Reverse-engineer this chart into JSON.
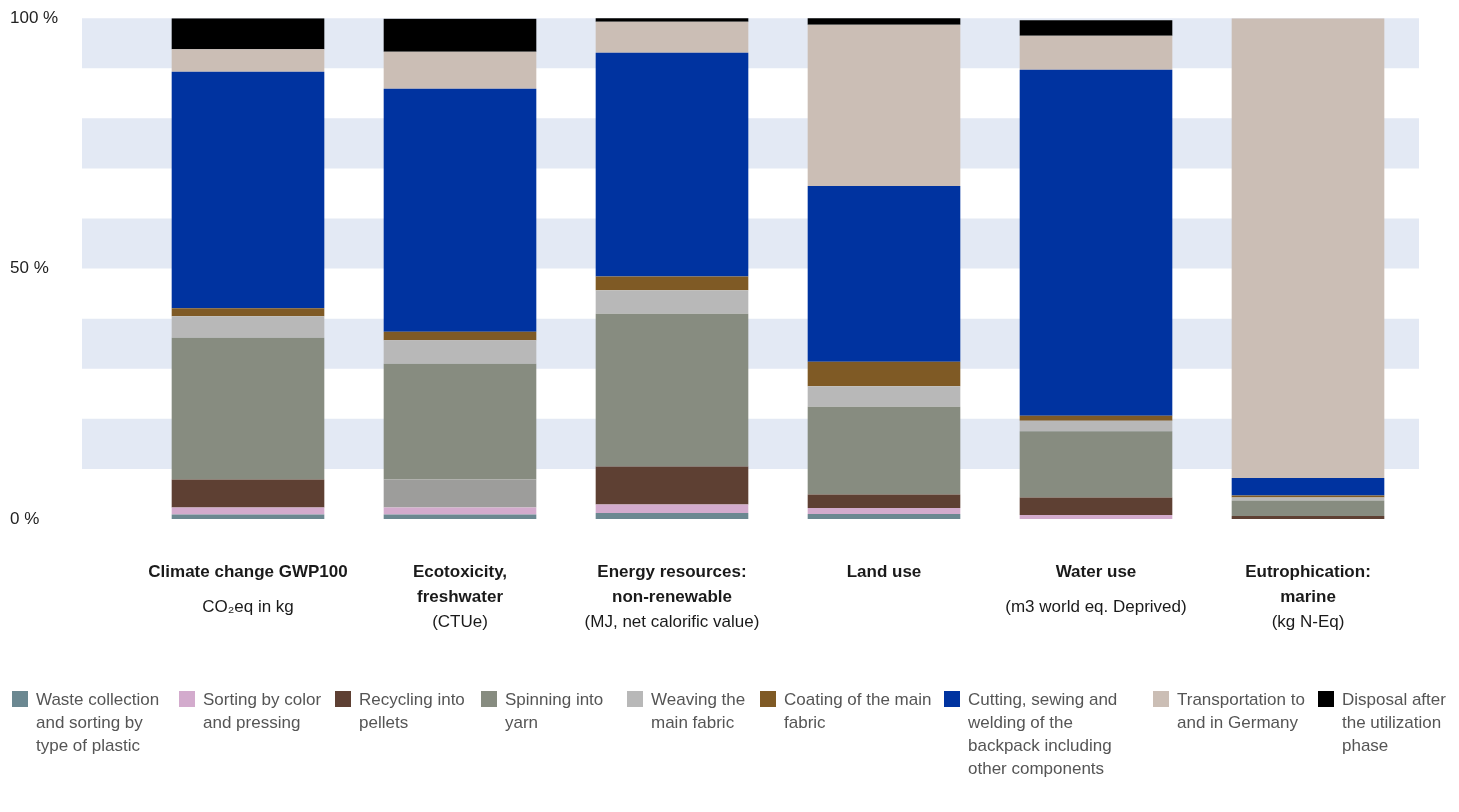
{
  "chart_data": {
    "type": "bar",
    "stacked": true,
    "categories": [
      "Climate change GWP100\nCO₂eq in kg",
      "Ecotoxicity,\nfreshwater\n(CTUe)",
      "Energy resources:\nnon-renewable\n(MJ, net calorific value)",
      "Land use",
      "Water use\n(m3 world eq. Deprived)",
      "Eutrophication:\nmarine\n(kg N-Eq)"
    ],
    "series": [
      {
        "name": "Waste collection and sorting by type of plastic",
        "color": "#6b8891",
        "values": [
          0.9,
          0.9,
          1.2,
          1.0,
          0,
          0
        ]
      },
      {
        "name": "Sorting by color and pressing",
        "color": "#d3abcd",
        "values": [
          1.4,
          1.4,
          1.7,
          1.2,
          0.8,
          0
        ]
      },
      {
        "name": "Recycling into pellets",
        "color": "#5e4033",
        "colors": [
          "#5e4033",
          "#9d9d9b",
          "#5e4033",
          "#5e4033",
          "#5e4033",
          "#5e4033"
        ],
        "values": [
          5.6,
          5.6,
          7.6,
          2.7,
          3.5,
          0.6
        ]
      },
      {
        "name": "Spinning into yarn",
        "color": "#878c80",
        "values": [
          28.3,
          23.1,
          30.5,
          17.5,
          13.2,
          3.1
        ]
      },
      {
        "name": "Weaving the main fabric",
        "color": "#b8b8b8",
        "values": [
          4.3,
          4.7,
          4.7,
          4.1,
          2.1,
          0.6
        ]
      },
      {
        "name": "Coating of the main fabric",
        "color": "#7f5a25",
        "values": [
          1.6,
          1.7,
          2.7,
          4.9,
          1.0,
          0.4
        ]
      },
      {
        "name": "Cutting, sewing and welding of the backpack including other components",
        "color": "#0033a0",
        "values": [
          47.2,
          48.5,
          44.7,
          35.1,
          69.1,
          3.5
        ]
      },
      {
        "name": "Transportation to and in Germany",
        "color": "#cbbeb5",
        "values": [
          4.5,
          7.4,
          6.2,
          32.2,
          6.8,
          91.8
        ]
      },
      {
        "name": "Disposal after the utilization phase",
        "color": "#000000",
        "values": [
          6.2,
          6.6,
          0.8,
          1.4,
          3.1,
          0
        ]
      }
    ],
    "ylim": [
      0,
      100
    ],
    "yticks": [
      {
        "value": 0,
        "label": "0 %"
      },
      {
        "value": 50,
        "label": "50 %"
      },
      {
        "value": 100,
        "label": "100 %"
      }
    ],
    "bands": [
      {
        "axis": "y",
        "from": 10,
        "to": 20,
        "color": "#e3e9f4"
      },
      {
        "axis": "y",
        "from": 30,
        "to": 40,
        "color": "#e3e9f4"
      },
      {
        "axis": "y",
        "from": 50,
        "to": 60,
        "color": "#e3e9f4"
      },
      {
        "axis": "y",
        "from": 70,
        "to": 80,
        "color": "#e3e9f4"
      },
      {
        "axis": "y",
        "from": 90,
        "to": 100,
        "color": "#e3e9f4"
      }
    ],
    "grid": false,
    "legend": "bottom"
  }
}
